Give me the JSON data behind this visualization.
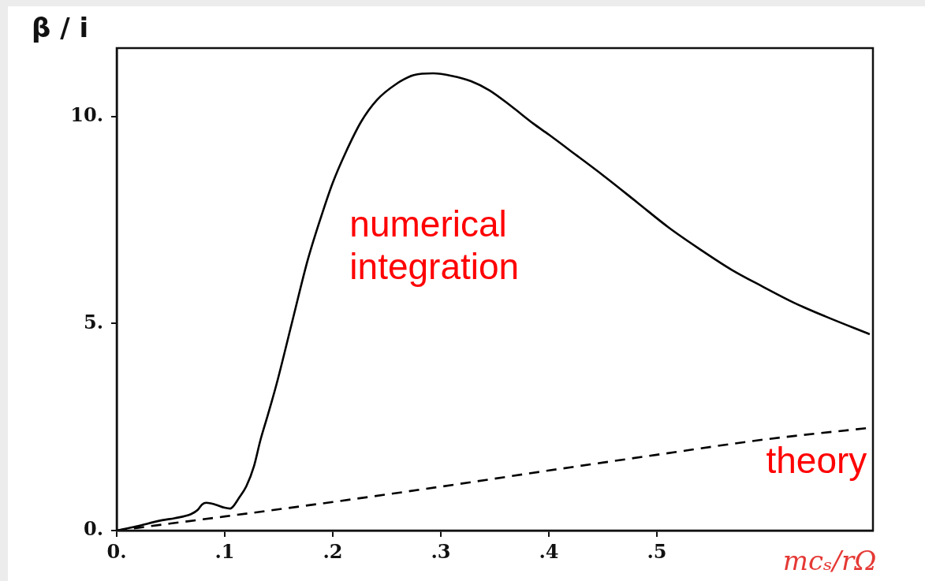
{
  "chart_data": {
    "type": "line",
    "xlabel": "mcₛ/rΩ",
    "ylabel": "β / i",
    "xlim": [
      0,
      0.7
    ],
    "ylim": [
      0,
      11.65
    ],
    "xticks": [
      {
        "value": 0,
        "label": "0."
      },
      {
        "value": 0.1,
        "label": ".1"
      },
      {
        "value": 0.2,
        "label": ".2"
      },
      {
        "value": 0.3,
        "label": ".3"
      },
      {
        "value": 0.4,
        "label": ".4"
      },
      {
        "value": 0.5,
        "label": ".5"
      }
    ],
    "yticks": [
      {
        "value": 0,
        "label": "0."
      },
      {
        "value": 5,
        "label": "5."
      },
      {
        "value": 10,
        "label": "10."
      }
    ],
    "grid": false,
    "legend": false,
    "marker": "none",
    "series": [
      {
        "name": "numerical integration",
        "color": "#000000",
        "line_style": "solid",
        "x": [
          0,
          0.018,
          0.042,
          0.054,
          0.069,
          0.075,
          0.079,
          0.083,
          0.091,
          0.1,
          0.105,
          0.108,
          0.113,
          0.12,
          0.127,
          0.133,
          0.14,
          0.148,
          0.1625,
          0.177,
          0.1915,
          0.2,
          0.2116,
          0.2262,
          0.241,
          0.258,
          0.275,
          0.293,
          0.31,
          0.328,
          0.345,
          0.365,
          0.3855,
          0.4,
          0.4246,
          0.4535,
          0.4824,
          0.5113,
          0.54,
          0.569,
          0.598,
          0.627,
          0.656,
          0.697
        ],
        "values": [
          0,
          0.1,
          0.25,
          0.3,
          0.4,
          0.5,
          0.63,
          0.67,
          0.63,
          0.55,
          0.53,
          0.59,
          0.78,
          1.07,
          1.55,
          2.18,
          2.8,
          3.54,
          5.05,
          6.55,
          7.76,
          8.4,
          9.11,
          9.87,
          10.4,
          10.77,
          11.0,
          11.04,
          10.98,
          10.85,
          10.63,
          10.25,
          9.83,
          9.56,
          9.08,
          8.51,
          7.91,
          7.31,
          6.79,
          6.3,
          5.89,
          5.5,
          5.17,
          4.74
        ]
      },
      {
        "name": "theory",
        "color": "#000000",
        "line_style": "dashed",
        "x": [
          0,
          0.05,
          0.1,
          0.2,
          0.3,
          0.4,
          0.5,
          0.6,
          0.697
        ],
        "values": [
          0,
          0.17,
          0.34,
          0.69,
          1.06,
          1.45,
          1.83,
          2.2,
          2.48
        ]
      }
    ]
  }
}
